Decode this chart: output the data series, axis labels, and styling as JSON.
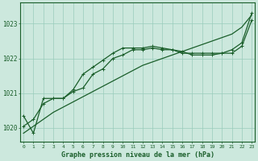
{
  "xlabel": "Graphe pression niveau de la mer (hPa)",
  "xlim": [
    -0.3,
    23.3
  ],
  "ylim": [
    1019.6,
    1023.6
  ],
  "yticks": [
    1020,
    1021,
    1022,
    1023
  ],
  "xticks": [
    0,
    1,
    2,
    3,
    4,
    5,
    6,
    7,
    8,
    9,
    10,
    11,
    12,
    13,
    14,
    15,
    16,
    17,
    18,
    19,
    20,
    21,
    22,
    23
  ],
  "bg_color": "#cce8dd",
  "grid_color": "#99ccbb",
  "line_color": "#1a5e2a",
  "line_straight": [
    1019.85,
    1020.05,
    1020.25,
    1020.45,
    1020.6,
    1020.75,
    1020.9,
    1021.05,
    1021.2,
    1021.35,
    1021.5,
    1021.65,
    1021.8,
    1021.9,
    1022.0,
    1022.1,
    1022.2,
    1022.3,
    1022.4,
    1022.5,
    1022.6,
    1022.7,
    1022.9,
    1023.25
  ],
  "line_upper": [
    1020.05,
    1020.25,
    1020.7,
    1020.85,
    1020.85,
    1021.1,
    1021.55,
    1021.75,
    1021.95,
    1022.15,
    1022.3,
    1022.3,
    1022.3,
    1022.35,
    1022.3,
    1022.25,
    1022.15,
    1022.15,
    1022.15,
    1022.15,
    1022.15,
    1022.25,
    1022.45,
    1023.3
  ],
  "line_mid": [
    1020.35,
    1019.85,
    1020.85,
    1020.85,
    1020.85,
    1021.05,
    1021.15,
    1021.55,
    1021.7,
    1022.0,
    1022.1,
    1022.25,
    1022.25,
    1022.3,
    1022.25,
    1022.25,
    1022.2,
    1022.1,
    1022.1,
    1022.1,
    1022.15,
    1022.15,
    1022.35,
    1023.1
  ],
  "marker": "+",
  "marker_size": 3.5,
  "lw": 0.9
}
